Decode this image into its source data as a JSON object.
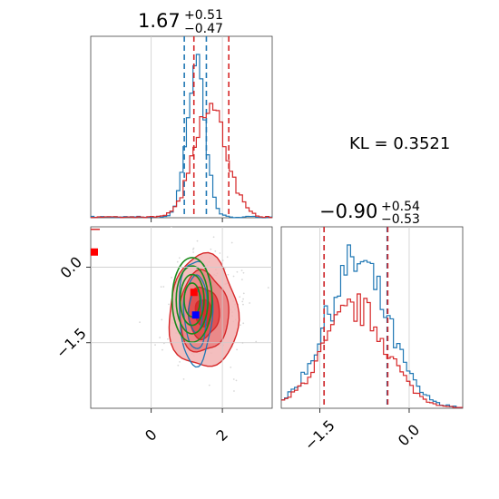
{
  "chart_data": [
    {
      "type": "histogram",
      "panel": "marginal-param-1",
      "title": {
        "value": "1.67",
        "upper": "+0.51",
        "lower": "−0.47"
      },
      "xlim": [
        -1.7,
        3.4
      ],
      "series": [
        {
          "color": "#1f77b4",
          "center": 1.25,
          "sigma": 0.26,
          "quantiles": [
            0.93,
            1.55
          ]
        },
        {
          "color": "#d62728",
          "center": 1.67,
          "sigma": 0.46,
          "quantiles": [
            1.2,
            2.18
          ]
        }
      ]
    },
    {
      "type": "histogram",
      "panel": "marginal-param-2",
      "title": {
        "value": "−0.90",
        "upper": "+0.54",
        "lower": "−0.53"
      },
      "xlim": [
        -2.15,
        0.9
      ],
      "xticks": [
        -1.5,
        0.0
      ],
      "xtick_labels": [
        "−1.5",
        "0.0"
      ],
      "series": [
        {
          "color": "#1f77b4",
          "center": -0.88,
          "sigma": 0.52,
          "quantiles": [
            -1.43,
            -0.37
          ]
        },
        {
          "color": "#d62728",
          "center": -0.9,
          "sigma": 0.53,
          "quantiles": [
            -1.43,
            -0.36
          ]
        }
      ]
    },
    {
      "type": "scatter",
      "panel": "joint-contour",
      "xlim": [
        -1.7,
        3.4
      ],
      "ylim": [
        -2.8,
        0.8
      ],
      "xticks": [
        0,
        2
      ],
      "xtick_labels": [
        "0",
        "2"
      ],
      "yticks": [
        0.0,
        -1.5
      ],
      "ytick_labels": [
        "0.0",
        "−1.5"
      ],
      "markers": [
        {
          "x": 1.2,
          "y": -0.5,
          "color": "#ff0000"
        },
        {
          "x": 1.25,
          "y": -0.95,
          "color": "#0000ff"
        },
        {
          "x": -1.7,
          "y": 0.3,
          "color": "#ff0000"
        }
      ],
      "contours": {
        "red": {
          "center": [
            1.67,
            -0.9
          ],
          "sigma": [
            0.46,
            0.53
          ]
        },
        "blue": {
          "center": [
            1.25,
            -0.88
          ],
          "sigma": [
            0.26,
            0.52
          ]
        },
        "green": {
          "center": [
            1.15,
            -0.65
          ],
          "sigma": [
            0.28,
            0.42
          ]
        }
      }
    }
  ],
  "kl_text": "KL = 0.3521",
  "colors": {
    "blue": "#1f77b4",
    "red": "#d62728",
    "green": "#1a8a1a",
    "grid": "#cccccc"
  }
}
